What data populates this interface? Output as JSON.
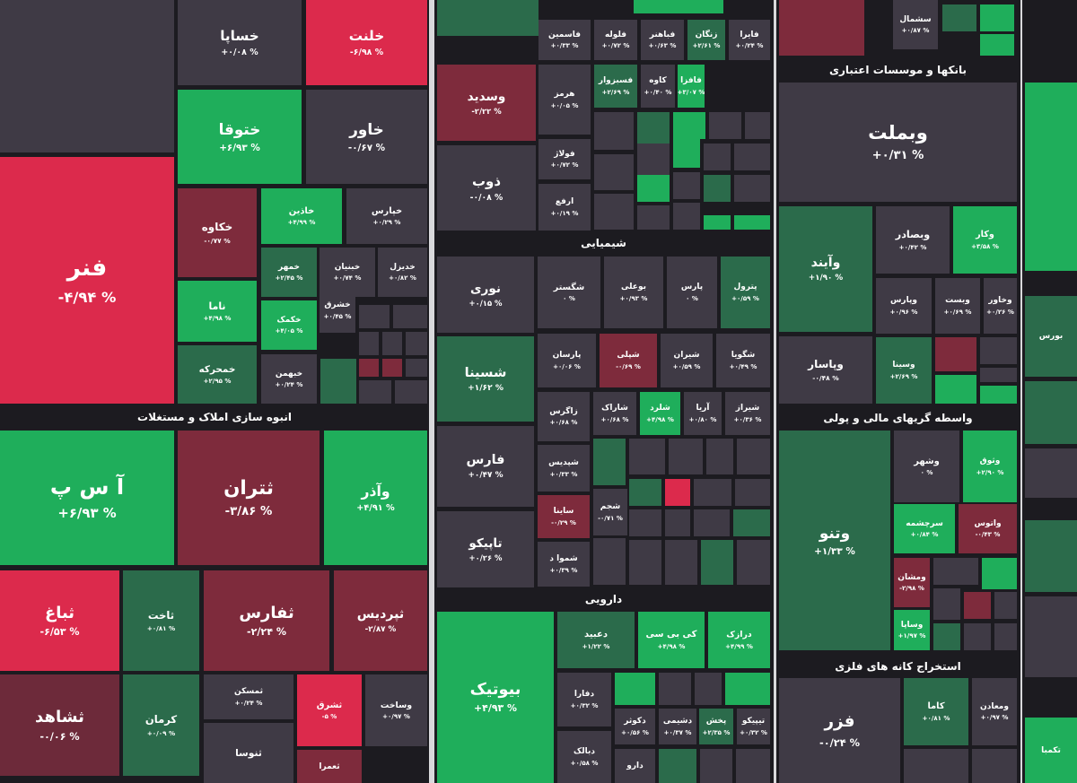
{
  "sector_titles": [
    "انبوه سازی املاک و مستغلات",
    "شیمیایی",
    "دارویی",
    "بانکها و موسسات اعتباری",
    "واسطه گریهای مالی و پولی",
    "استخراج کانه های فلزی"
  ],
  "tiles": [
    {
      "name": "خساپا",
      "change": "+۰/۰۸ %",
      "color": "#3f3a45"
    },
    {
      "name": "خلنت",
      "change": "-۶/۹۸ %",
      "color": "#dc2a4c"
    },
    {
      "name": "ختوقا",
      "change": "+۶/۹۳ %",
      "color": "#1fae5b"
    },
    {
      "name": "خاور",
      "change": "-۰/۶۷ %",
      "color": "#3f3a45"
    },
    {
      "name": "فنر",
      "change": "-۴/۹۴ %",
      "color": "#dc2a4c"
    },
    {
      "name": "خکاوه",
      "change": "-۰/۷۷ %",
      "color": "#7e2b3c"
    },
    {
      "name": "خاذین",
      "change": "+۴/۹۹ %",
      "color": "#1fae5b"
    },
    {
      "name": "خپارس",
      "change": "+۰/۲۹ %",
      "color": "#3f3a45"
    },
    {
      "name": "ناما",
      "change": "+۴/۹۸ %",
      "color": "#1fae5b"
    },
    {
      "name": "خمحرکه",
      "change": "+۲/۹۵ %",
      "color": "#2b6b4b"
    },
    {
      "name": "خمهر",
      "change": "+۲/۴۵ %",
      "color": "#2b6b4b"
    },
    {
      "name": "خبنیان",
      "change": "+۰/۷۴ %",
      "color": "#3f3a45"
    },
    {
      "name": "خدیزل",
      "change": "+۰/۸۲ %",
      "color": "#3f3a45"
    },
    {
      "name": "خکمک",
      "change": "+۴/۰۵ %",
      "color": "#1fae5b"
    },
    {
      "name": "خشرق",
      "change": "+۰/۴۵ %",
      "color": "#3f3a45"
    },
    {
      "name": "خبهمن",
      "change": "+۰/۲۴ %",
      "color": "#3f3a45"
    },
    {
      "name": "آ س پ",
      "change": "+۶/۹۳ %",
      "color": "#1fae5b"
    },
    {
      "name": "ثتران",
      "change": "-۳/۸۶ %",
      "color": "#7e2b3c"
    },
    {
      "name": "وآذر",
      "change": "+۴/۹۱ %",
      "color": "#1fae5b"
    },
    {
      "name": "ثباغ",
      "change": "-۶/۵۳ %",
      "color": "#dc2a4c"
    },
    {
      "name": "ثاخت",
      "change": "+۰/۸۱ %",
      "color": "#2b6b4b"
    },
    {
      "name": "ثفارس",
      "change": "-۲/۲۴ %",
      "color": "#7e2b3c"
    },
    {
      "name": "ثپردیس",
      "change": "-۲/۸۷ %",
      "color": "#7e2b3c"
    },
    {
      "name": "ثشاهد",
      "change": "-۰/۰۶ %",
      "color": "#6d2a3a"
    },
    {
      "name": "کرمان",
      "change": "+۰/۰۹ %",
      "color": "#2b6b4b"
    },
    {
      "name": "ثمسکن",
      "change": "+۰/۲۴ %",
      "color": "#3f3a45"
    },
    {
      "name": "ثشرق",
      "change": "-۵ %",
      "color": "#dc2a4c"
    },
    {
      "name": "وساخت",
      "change": "+۰/۹۷ %",
      "color": "#3f3a45"
    },
    {
      "name": "ثنوسا",
      "color": "#3f3a45"
    },
    {
      "name": "ثعمرا",
      "color": "#7e2b3c"
    },
    {
      "name": "وسدید",
      "change": "-۲/۲۲ %",
      "color": "#7e2b3c"
    },
    {
      "name": "ذوب",
      "change": "-۰/۰۸ %",
      "color": "#3f3a45"
    },
    {
      "name": "فاسمین",
      "change": "+۰/۳۳ %",
      "color": "#3f3a45"
    },
    {
      "name": "فلوله",
      "change": "+۰/۷۲ %",
      "color": "#3f3a45"
    },
    {
      "name": "فباهنر",
      "change": "+۰/۶۳ %",
      "color": "#3f3a45"
    },
    {
      "name": "زنگان",
      "change": "+۲/۶۱ %",
      "color": "#2b6b4b"
    },
    {
      "name": "فایرا",
      "change": "+۰/۲۴ %",
      "color": "#3f3a45"
    },
    {
      "name": "هرمز",
      "change": "+۰/۰۵ %",
      "color": "#3f3a45"
    },
    {
      "name": "فسبزوار",
      "change": "+۲/۶۹ %",
      "color": "#2b6b4b"
    },
    {
      "name": "کاوه",
      "change": "+۰/۴۰ %",
      "color": "#3f3a45"
    },
    {
      "name": "فافزا",
      "change": "+۳/۰۷ %",
      "color": "#1fae5b"
    },
    {
      "name": "فولاژ",
      "change": "+۰/۷۲ %",
      "color": "#3f3a45"
    },
    {
      "name": "ارفع",
      "change": "+۰/۱۹ %",
      "color": "#3f3a45"
    },
    {
      "name": "نوری",
      "change": "+۰/۱۵ %",
      "color": "#3f3a45"
    },
    {
      "name": "شگستر",
      "change": "۰ %",
      "color": "#3f3a45"
    },
    {
      "name": "بوعلی",
      "change": "+۰/۹۳ %",
      "color": "#3f3a45"
    },
    {
      "name": "پارس",
      "change": "۰ %",
      "color": "#3f3a45"
    },
    {
      "name": "پترول",
      "change": "+۰/۵۹ %",
      "color": "#2b6b4b"
    },
    {
      "name": "شسینا",
      "change": "+۱/۶۲ %",
      "color": "#2b6b4b"
    },
    {
      "name": "پارسان",
      "change": "+۰/۰۶ %",
      "color": "#3f3a45"
    },
    {
      "name": "شپلی",
      "change": "-۰/۶۹ %",
      "color": "#7e2b3c"
    },
    {
      "name": "شیران",
      "change": "+۰/۵۹ %",
      "color": "#3f3a45"
    },
    {
      "name": "شگویا",
      "change": "+۰/۴۹ %",
      "color": "#3f3a45"
    },
    {
      "name": "زاگرس",
      "change": "+۰/۶۸ %",
      "color": "#3f3a45"
    },
    {
      "name": "شاراک",
      "change": "+۰/۶۸ %",
      "color": "#3f3a45"
    },
    {
      "name": "شلرد",
      "change": "+۴/۹۸ %",
      "color": "#1fae5b"
    },
    {
      "name": "آریا",
      "change": "+۰/۸۰ %",
      "color": "#3f3a45"
    },
    {
      "name": "شیراز",
      "change": "+۰/۳۶ %",
      "color": "#3f3a45"
    },
    {
      "name": "فارس",
      "change": "+۰/۴۷ %",
      "color": "#3f3a45"
    },
    {
      "name": "شپدیس",
      "change": "+۰/۳۳ %",
      "color": "#3f3a45"
    },
    {
      "name": "ساینا",
      "change": "-۰/۲۹ %",
      "color": "#7e2b3c"
    },
    {
      "name": "شجم",
      "change": "-۰/۷۱ %",
      "color": "#3f3a45"
    },
    {
      "name": "تاپیکو",
      "change": "+۰/۲۶ %",
      "color": "#3f3a45"
    },
    {
      "name": "شموا د",
      "change": "+۰/۳۹ %",
      "color": "#3f3a45"
    },
    {
      "name": "بیوتیک",
      "change": "+۴/۹۳ %",
      "color": "#1fae5b"
    },
    {
      "name": "دعبید",
      "change": "+۱/۲۲ %",
      "color": "#2b6b4b"
    },
    {
      "name": "کی بی سی",
      "change": "+۴/۹۸ %",
      "color": "#1fae5b"
    },
    {
      "name": "درازک",
      "change": "+۴/۹۹ %",
      "color": "#1fae5b"
    },
    {
      "name": "دفارا",
      "change": "+۰/۳۲ %",
      "color": "#3f3a45"
    },
    {
      "name": "دکوثر",
      "change": "+۰/۵۶ %",
      "color": "#3f3a45"
    },
    {
      "name": "دشیمی",
      "change": "+۰/۳۷ %",
      "color": "#3f3a45"
    },
    {
      "name": "پخش",
      "change": "+۲/۳۵ %",
      "color": "#2b6b4b"
    },
    {
      "name": "تیپیکو",
      "change": "+۰/۳۲ %",
      "color": "#3f3a45"
    },
    {
      "name": "دبالک",
      "change": "+۰/۵۸ %",
      "color": "#3f3a45"
    },
    {
      "name": "دارو",
      "color": "#3f3a45"
    },
    {
      "name": "سشمال",
      "change": "+۰/۸۷ %",
      "color": "#3f3a45"
    },
    {
      "name": "وبملت",
      "change": "+۰/۳۱ %",
      "color": "#3f3a45"
    },
    {
      "name": "وآیند",
      "change": "+۱/۹۰ %",
      "color": "#2b6b4b"
    },
    {
      "name": "وبصادر",
      "change": "+۰/۴۲ %",
      "color": "#3f3a45"
    },
    {
      "name": "وکار",
      "change": "+۳/۵۸ %",
      "color": "#1fae5b"
    },
    {
      "name": "وپارس",
      "change": "+۰/۹۶ %",
      "color": "#3f3a45"
    },
    {
      "name": "وبست",
      "change": "+۰/۶۹ %",
      "color": "#3f3a45"
    },
    {
      "name": "وخاور",
      "change": "+۰/۲۶ %",
      "color": "#3f3a45"
    },
    {
      "name": "وپاسار",
      "change": "-۰/۴۸ %",
      "color": "#3f3a45"
    },
    {
      "name": "وسینا",
      "change": "+۲/۶۹ %",
      "color": "#2b6b4b"
    },
    {
      "name": "وتنو",
      "change": "+۱/۳۳ %",
      "color": "#2b6b4b"
    },
    {
      "name": "وشهر",
      "change": "۰ %",
      "color": "#3f3a45"
    },
    {
      "name": "وثوق",
      "change": "+۲/۹۰ %",
      "color": "#1fae5b"
    },
    {
      "name": "سرچشمه",
      "change": "+۰/۸۴ %",
      "color": "#1fae5b"
    },
    {
      "name": "واتوس",
      "change": "-۰/۴۳ %",
      "color": "#7e2b3c"
    },
    {
      "name": "ومشان",
      "change": "-۲/۹۸ %",
      "color": "#7e2b3c"
    },
    {
      "name": "وساپا",
      "change": "+۱/۹۷ %",
      "color": "#1fae5b"
    },
    {
      "name": "فزر",
      "change": "-۰/۲۴ %",
      "color": "#3f3a45"
    },
    {
      "name": "کاما",
      "change": "+۰/۸۱ %",
      "color": "#2b6b4b"
    },
    {
      "name": "ومعادن",
      "change": "+۰/۹۷ %",
      "color": "#3f3a45"
    },
    {
      "name": "بورس",
      "color": "#2b6b4b"
    },
    {
      "name": "تکمبا",
      "color": "#1fae5b"
    }
  ]
}
